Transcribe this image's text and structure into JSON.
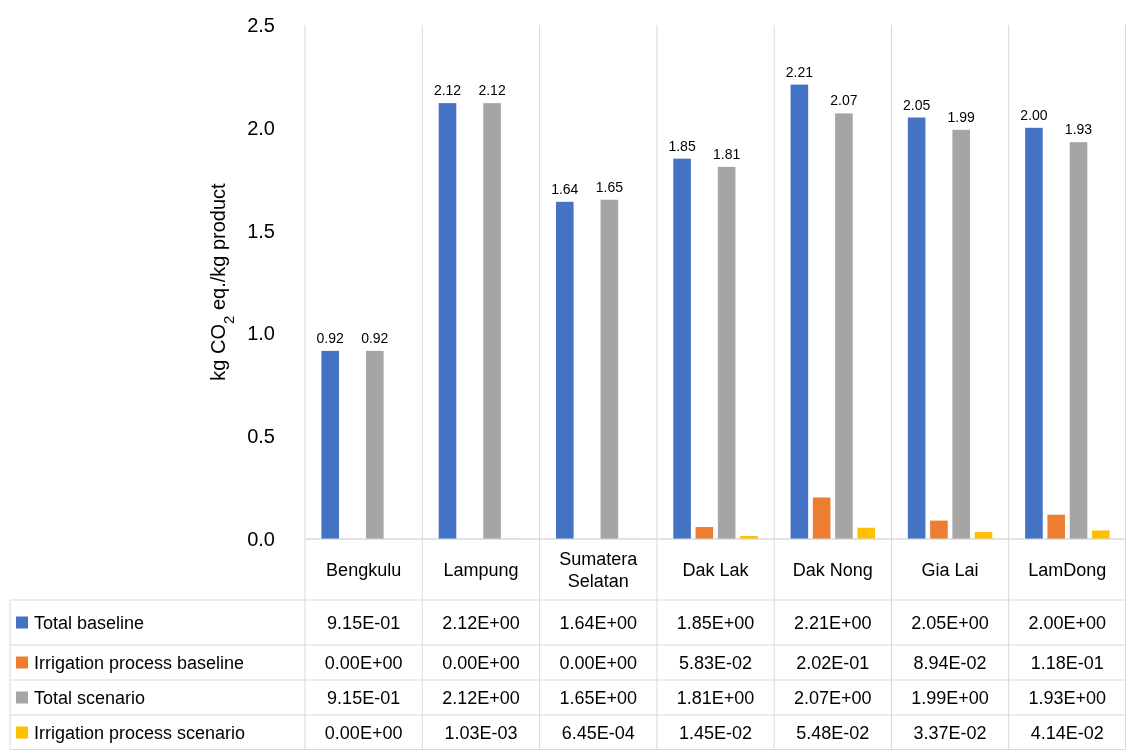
{
  "chart_data": {
    "type": "bar",
    "ylabel": "kg CO$_{2}$ eq./kg product",
    "categories": [
      "Bengkulu",
      "Lampung",
      "Sumatera Selatan",
      "Dak Lak",
      "Dak Nong",
      "Gia Lai",
      "LamDong"
    ],
    "ylim": [
      0,
      2.5
    ],
    "yticks": [
      {
        "value": 0,
        "label": "0.0"
      },
      0.5,
      {
        "value": 1,
        "label": "1.0"
      },
      1.5,
      {
        "value": 2,
        "label": "2.0"
      },
      2.5
    ],
    "grid": false,
    "legend": "bottom",
    "series": [
      {
        "name": "Total baseline",
        "color": "#4472c4",
        "values": [
          0.915,
          2.12,
          1.64,
          1.85,
          2.21,
          2.05,
          2.0
        ],
        "value_labels": [
          "9.15E-01",
          "2.12E+00",
          "1.64E+00",
          "1.85E+00",
          "2.21E+00",
          "2.05E+00",
          "2.00E+00"
        ]
      },
      {
        "name": "Irrigation process baseline",
        "color": "#ed7d31",
        "values": [
          0,
          0,
          0,
          0.0583,
          0.202,
          0.0894,
          0.118
        ],
        "value_labels": [
          "0.00E+00",
          "0.00E+00",
          "0.00E+00",
          "5.83E-02",
          "2.02E-01",
          "8.94E-02",
          "1.18E-01"
        ]
      },
      {
        "name": "Total scenario",
        "color": "#a5a5a5",
        "values": [
          0.915,
          2.12,
          1.65,
          1.81,
          2.07,
          1.99,
          1.93
        ],
        "value_labels": [
          "9.15E-01",
          "2.12E+00",
          "1.65E+00",
          "1.81E+00",
          "2.07E+00",
          "1.99E+00",
          "1.93E+00"
        ]
      },
      {
        "name": "Irrigation process scenario",
        "color": "#ffc000",
        "values": [
          0,
          0.00103,
          0.000645,
          0.0145,
          0.0548,
          0.0337,
          0.0414
        ],
        "value_labels": [
          "0.00E+00",
          "1.03E-03",
          "6.45E-04",
          "1.45E-02",
          "5.48E-02",
          "3.37E-02",
          "4.14E-02"
        ]
      }
    ],
    "annotations": [
      "0.92",
      "0.92",
      "2.12",
      "2.12",
      "1.64",
      "1.65",
      "1.85",
      "1.81",
      "2.21",
      "2.07",
      "2.05",
      "1.99",
      "2.00",
      "1.93"
    ]
  }
}
